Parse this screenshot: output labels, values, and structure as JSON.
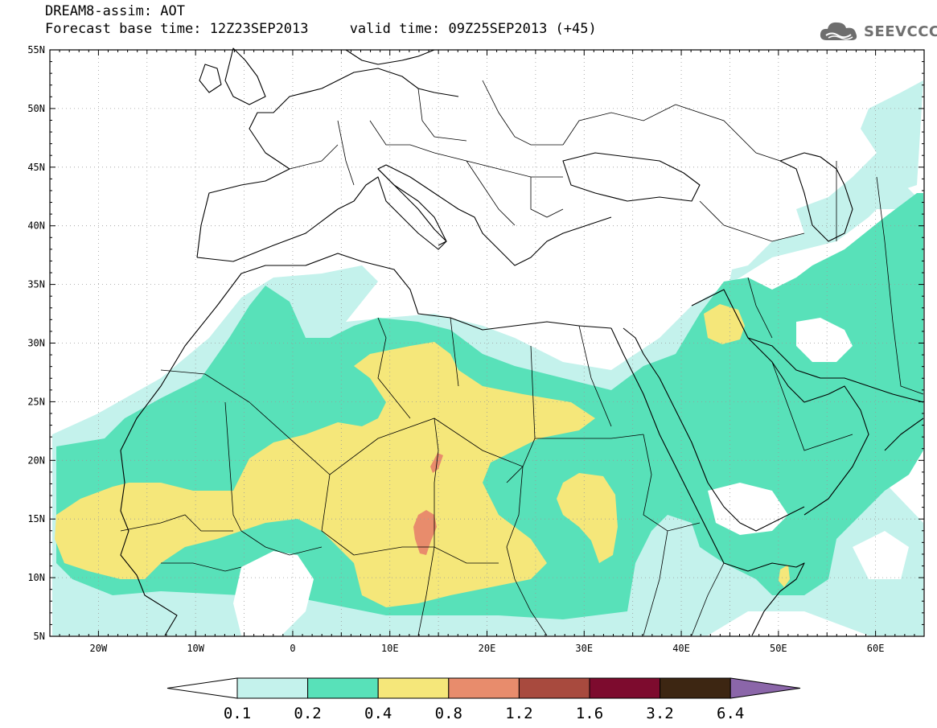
{
  "header": {
    "line1": "DREAM8-assim: AOT",
    "line2": "Forecast base time: 12Z23SEP2013     valid time: 09Z25SEP2013 (+45)"
  },
  "logo": {
    "text": "SEEVCCC",
    "icon": "cloud-icon"
  },
  "map": {
    "lon_range": [
      -25,
      65
    ],
    "lat_range": [
      5,
      55
    ],
    "lat_labels": [
      "55N",
      "50N",
      "45N",
      "40N",
      "35N",
      "30N",
      "25N",
      "20N",
      "15N",
      "10N",
      "5N"
    ],
    "lon_labels": [
      "20W",
      "10W",
      "0",
      "10E",
      "20E",
      "30E",
      "40E",
      "50E",
      "60E"
    ],
    "grid": "dotted"
  },
  "colorbar": {
    "labels": [
      "0.1",
      "0.2",
      "0.4",
      "0.8",
      "1.2",
      "1.6",
      "3.2",
      "6.4"
    ],
    "colors": [
      "#ffffff",
      "#c4f2ec",
      "#58e1b9",
      "#f5e77a",
      "#e88c6c",
      "#a84a3e",
      "#7d0b2e",
      "#3d2612",
      "#8b66a9"
    ]
  }
}
